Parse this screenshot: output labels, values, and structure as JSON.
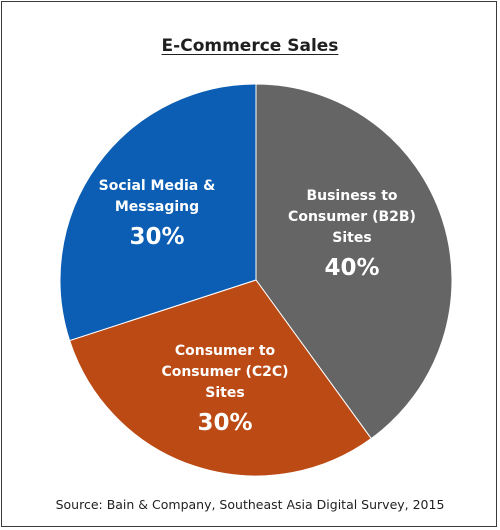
{
  "chart_data": {
    "type": "pie",
    "title": "E-Commerce Sales",
    "slices": [
      {
        "label_lines": [
          "Business to",
          "Consumer (B2B)",
          "Sites"
        ],
        "value": 40,
        "value_label": "40%",
        "color": "#656565"
      },
      {
        "label_lines": [
          "Consumer to",
          "Consumer (C2C)",
          "Sites"
        ],
        "value": 30,
        "value_label": "30%",
        "color": "#bc4a14"
      },
      {
        "label_lines": [
          "Social Media &",
          "Messaging"
        ],
        "value": 30,
        "value_label": "30%",
        "color": "#0b5eb4"
      }
    ],
    "source": "Source: Bain & Company, Southeast Asia Digital Survey, 2015"
  }
}
